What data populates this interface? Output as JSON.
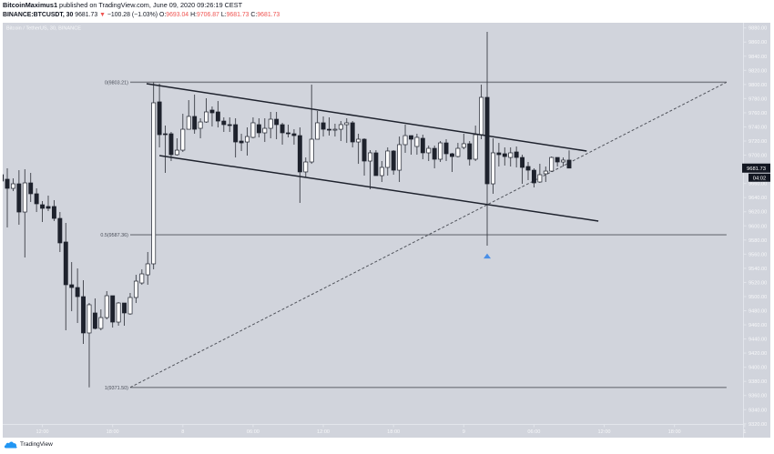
{
  "header": {
    "author": "BitcoinMaximus1",
    "published_text": "published on TradingView.com, June 09, 2020 09:26:19 CEST",
    "symbol_interval": "BINANCE:BTCUSDT, 30",
    "last_price": "9681.73",
    "change_arrow": "▼",
    "change": "−100.28 (−1.03%)",
    "ohlc": [
      {
        "label": "O:",
        "value": "9693.04"
      },
      {
        "label": "H:",
        "value": "9706.87"
      },
      {
        "label": "L:",
        "value": "9681.73"
      },
      {
        "label": "C:",
        "value": "9681.73"
      }
    ]
  },
  "chart": {
    "legend": "Bitcoin / TetherUS, 30, BINANCE",
    "current_price_label": "9681.73",
    "countdown": "04:02"
  },
  "footer": {
    "brand": "TradingView"
  },
  "colors": {
    "chart_bg": "#d1d4dc",
    "axis_line": "#e3e6ec",
    "axis_text": "#f7f8fa",
    "up_candle": "#ffffff",
    "down_candle": "#1e222d",
    "wick": "#3b3e46",
    "trend_line": "#1e222d",
    "fib_line": "#7c7f87",
    "fib_label": "#4a4e59",
    "negative": "#ef5350",
    "marker": "#4a8fe7",
    "price_label_bg": "#131722",
    "brand": "#2196f3"
  },
  "chart_data": {
    "type": "candlestick",
    "title": "Bitcoin / TetherUS, 30, BINANCE",
    "symbol": "BINANCE:BTCUSDT",
    "interval": "30",
    "xlabel": "",
    "ylabel": "",
    "ylim": [
      9320,
      9880
    ],
    "grid": false,
    "legend_position": "top-left",
    "yticks": [
      9880,
      9860,
      9840,
      9820,
      9800,
      9780,
      9760,
      9740,
      9720,
      9700,
      9680,
      9660,
      9640,
      9620,
      9600,
      9580,
      9560,
      9540,
      9520,
      9500,
      9480,
      9460,
      9440,
      9420,
      9400,
      9380,
      9360,
      9340,
      9320
    ],
    "xticks": [
      {
        "label": "12:00",
        "index": 0
      },
      {
        "label": "18:00",
        "index": 12
      },
      {
        "label": "8",
        "index": 24
      },
      {
        "label": "06:00",
        "index": 36
      },
      {
        "label": "12:00",
        "index": 48
      },
      {
        "label": "18:00",
        "index": 60
      },
      {
        "label": "9",
        "index": 72
      },
      {
        "label": "06:00",
        "index": 84
      },
      {
        "label": "12:00",
        "index": 96
      },
      {
        "label": "18:00",
        "index": 108
      },
      {
        "label": "1",
        "index": 120
      }
    ],
    "candle_format": [
      "open",
      "high",
      "low",
      "close"
    ],
    "first_index": -7,
    "candles": [
      [
        9672.4,
        9680.1,
        9655.7,
        9663.4
      ],
      [
        9666.0,
        9681.4,
        9597.7,
        9653.1
      ],
      [
        9653.1,
        9667.2,
        9649.2,
        9659.5
      ],
      [
        9659.5,
        9678.8,
        9601.6,
        9619.6
      ],
      [
        9619.6,
        9680.1,
        9555.3,
        9660.8
      ],
      [
        9660.8,
        9675.0,
        9633.8,
        9645.4
      ],
      [
        9645.4,
        9653.1,
        9619.6,
        9631.2
      ],
      [
        9629.9,
        9635.1,
        9605.5,
        9624.8
      ],
      [
        9627.4,
        9642.8,
        9620.9,
        9624.8
      ],
      [
        9627.4,
        9636.4,
        9606.8,
        9610.6
      ],
      [
        9610.6,
        9619.6,
        9563.0,
        9575.9
      ],
      [
        9577.2,
        9604.2,
        9452.3,
        9516.7
      ],
      [
        9516.7,
        9548.8,
        9479.3,
        9512.8
      ],
      [
        9512.8,
        9539.8,
        9462.6,
        9499.9
      ],
      [
        9499.9,
        9523.1,
        9433.0,
        9448.5
      ],
      [
        9448.5,
        9490.9,
        9371.5,
        9488.4
      ],
      [
        9476.8,
        9497.4,
        9453.6,
        9454.9
      ],
      [
        9454.9,
        9481.9,
        9452.3,
        9470.3
      ],
      [
        9470.3,
        9507.7,
        9467.8,
        9501.2
      ],
      [
        9501.2,
        9501.2,
        9456.2,
        9463.9
      ],
      [
        9463.9,
        9492.2,
        9458.8,
        9490.9
      ],
      [
        9490.9,
        9490.9,
        9458.8,
        9476.8
      ],
      [
        9475.5,
        9505.1,
        9474.2,
        9498.7
      ],
      [
        9498.7,
        9530.8,
        9490.9,
        9521.8
      ],
      [
        9519.2,
        9538.5,
        9516.7,
        9532.1
      ],
      [
        9530.8,
        9563.0,
        9516.7,
        9546.3
      ],
      [
        9546.3,
        9803.2,
        9538.5,
        9774.1
      ],
      [
        9775.4,
        9801.1,
        9711.0,
        9729.0
      ],
      [
        9730.3,
        9741.9,
        9675.0,
        9729.0
      ],
      [
        9730.3,
        9732.9,
        9691.7,
        9700.7
      ],
      [
        9700.7,
        9723.9,
        9699.4,
        9707.1
      ],
      [
        9707.1,
        9758.6,
        9704.6,
        9736.7
      ],
      [
        9736.7,
        9777.9,
        9736.7,
        9754.8
      ],
      [
        9754.8,
        9785.7,
        9730.3,
        9736.7
      ],
      [
        9738.0,
        9752.2,
        9723.9,
        9747.0
      ],
      [
        9747.0,
        9780.5,
        9745.8,
        9761.2
      ],
      [
        9763.8,
        9768.9,
        9740.6,
        9759.9
      ],
      [
        9761.2,
        9776.6,
        9739.3,
        9748.3
      ],
      [
        9748.3,
        9753.5,
        9732.9,
        9743.2
      ],
      [
        9743.2,
        9753.5,
        9732.9,
        9741.9
      ],
      [
        9743.2,
        9752.2,
        9696.8,
        9718.7
      ],
      [
        9720.0,
        9730.3,
        9705.9,
        9717.4
      ],
      [
        9718.7,
        9739.3,
        9699.4,
        9726.4
      ],
      [
        9725.2,
        9753.5,
        9723.9,
        9745.8
      ],
      [
        9743.2,
        9752.2,
        9725.2,
        9731.6
      ],
      [
        9731.6,
        9752.2,
        9718.7,
        9738.0
      ],
      [
        9738.0,
        9761.2,
        9723.9,
        9750.9
      ],
      [
        9750.9,
        9761.2,
        9722.6,
        9743.2
      ],
      [
        9743.2,
        9745.8,
        9714.9,
        9731.6
      ],
      [
        9731.6,
        9743.2,
        9725.2,
        9730.3
      ],
      [
        9730.3,
        9736.7,
        9714.9,
        9727.7
      ],
      [
        9727.7,
        9739.3,
        9632.5,
        9676.3
      ],
      [
        9676.3,
        9696.8,
        9668.5,
        9690.4
      ],
      [
        9690.4,
        9799.8,
        9687.8,
        9722.6
      ],
      [
        9722.6,
        9762.5,
        9722.6,
        9745.8
      ],
      [
        9745.8,
        9754.8,
        9726.4,
        9736.7
      ],
      [
        9736.7,
        9753.5,
        9727.7,
        9735.5
      ],
      [
        9735.5,
        9744.5,
        9726.4,
        9736.7
      ],
      [
        9736.7,
        9748.3,
        9720.0,
        9743.2
      ],
      [
        9743.2,
        9752.2,
        9717.4,
        9745.8
      ],
      [
        9745.8,
        9748.3,
        9711.0,
        9718.7
      ],
      [
        9718.7,
        9730.3,
        9687.8,
        9722.6
      ],
      [
        9722.6,
        9723.9,
        9671.1,
        9691.7
      ],
      [
        9691.7,
        9707.1,
        9651.8,
        9703.3
      ],
      [
        9703.3,
        9707.1,
        9671.1,
        9671.1
      ],
      [
        9671.1,
        9691.7,
        9662.1,
        9682.7
      ],
      [
        9682.7,
        9711.0,
        9671.1,
        9705.9
      ],
      [
        9705.9,
        9707.1,
        9672.4,
        9678.8
      ],
      [
        9678.8,
        9726.4,
        9662.1,
        9714.9
      ],
      [
        9714.9,
        9743.2,
        9703.3,
        9727.7
      ],
      [
        9727.7,
        9727.7,
        9700.7,
        9722.6
      ],
      [
        9712.3,
        9730.3,
        9700.7,
        9725.2
      ],
      [
        9723.9,
        9729.0,
        9694.3,
        9703.3
      ],
      [
        9703.3,
        9713.6,
        9691.7,
        9709.7
      ],
      [
        9709.7,
        9713.6,
        9681.4,
        9694.3
      ],
      [
        9694.3,
        9720.0,
        9690.4,
        9717.4
      ],
      [
        9717.4,
        9722.6,
        9691.7,
        9702.0
      ],
      [
        9702.0,
        9703.3,
        9676.3,
        9698.1
      ],
      [
        9698.1,
        9717.4,
        9696.8,
        9709.7
      ],
      [
        9711.0,
        9730.3,
        9708.4,
        9716.2
      ],
      [
        9716.2,
        9720.0,
        9685.3,
        9694.3
      ],
      [
        9694.3,
        9741.9,
        9691.7,
        9729.0
      ],
      [
        9729.0,
        9799.8,
        9722.6,
        9781.8
      ],
      [
        9781.8,
        9874.5,
        9572.0,
        9659.5
      ],
      [
        9659.5,
        9723.9,
        9645.4,
        9703.3
      ],
      [
        9703.3,
        9717.4,
        9684.0,
        9700.7
      ],
      [
        9702.0,
        9711.0,
        9685.3,
        9698.1
      ],
      [
        9696.8,
        9711.0,
        9684.0,
        9703.3
      ],
      [
        9704.6,
        9712.3,
        9682.7,
        9696.8
      ],
      [
        9696.8,
        9700.7,
        9659.5,
        9682.7
      ],
      [
        9684.0,
        9690.4,
        9664.7,
        9678.8
      ],
      [
        9678.8,
        9681.4,
        9654.4,
        9660.8
      ],
      [
        9662.1,
        9687.8,
        9660.8,
        9672.4
      ],
      [
        9673.7,
        9684.0,
        9662.1,
        9677.5
      ],
      [
        9677.5,
        9698.1,
        9676.3,
        9696.8
      ],
      [
        9696.8,
        9696.8,
        9684.0,
        9690.4
      ],
      [
        9690.4,
        9696.8,
        9684.0,
        9693.0
      ],
      [
        9693.04,
        9706.87,
        9681.73,
        9681.73
      ]
    ],
    "drawings": {
      "fib_retracement": {
        "x_start_index": 15.0,
        "x_end_index": 116.9,
        "levels": [
          {
            "ratio": "0",
            "price": 9803.21,
            "label": "0(9803.21)"
          },
          {
            "ratio": "0.5",
            "price": 9587.36,
            "label": "0.5(9587.36)"
          },
          {
            "ratio": "1",
            "price": 9371.5,
            "label": "1(9371.50)"
          }
        ],
        "dashed_trend": {
          "from": [
            15.0,
            9371.5
          ],
          "to": [
            116.9,
            9803.21
          ]
        }
      },
      "trend_lines": [
        {
          "name": "upper-channel-line",
          "from": [
            17.8,
            9801.1
          ],
          "to": [
            93.0,
            9705.9
          ]
        },
        {
          "name": "lower-channel-line",
          "from": [
            20.0,
            9699.4
          ],
          "to": [
            95.0,
            9606.8
          ]
        }
      ],
      "marker": {
        "shape": "triangle-up",
        "index": 76,
        "price": 9557.0
      }
    }
  }
}
